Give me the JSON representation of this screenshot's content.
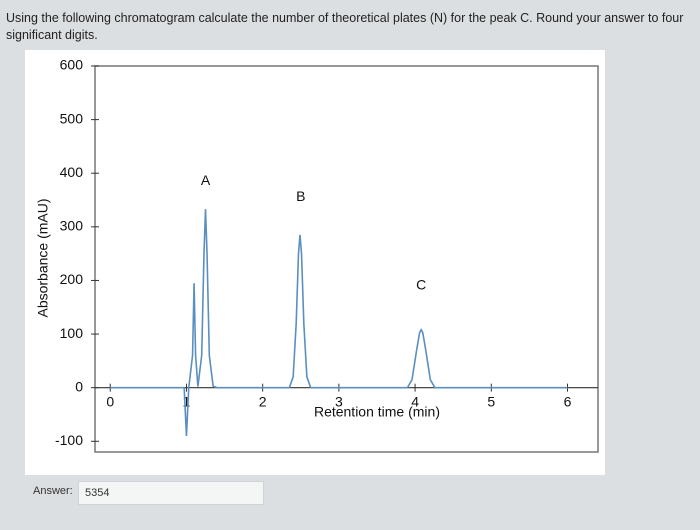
{
  "question": "Using the following chromatogram calculate the number of theoretical plates (N) for the peak C. Round your answer to four significant digits.",
  "answer_label": "Answer:",
  "answer_value": "5354",
  "chart_data": {
    "type": "line",
    "xlabel": "Retention time (min)",
    "ylabel": "Absorbance (mAU)",
    "xlim": [
      -0.2,
      6.4
    ],
    "ylim": [
      -120,
      600
    ],
    "xticks": [
      0,
      1,
      2,
      3,
      4,
      5,
      6
    ],
    "yticks": [
      -100,
      0,
      100,
      200,
      300,
      400,
      500,
      600
    ],
    "annotations": [
      {
        "text": "A",
        "x": 1.25,
        "y": 385
      },
      {
        "text": "B",
        "x": 2.5,
        "y": 355
      },
      {
        "text": "C",
        "x": 4.08,
        "y": 190
      }
    ],
    "series": [
      {
        "color": "#5b8fbf",
        "x": [
          0,
          0.97,
          1.0,
          1.03,
          1.08,
          1.1,
          1.12,
          1.15,
          1.2,
          1.23,
          1.25,
          1.27,
          1.3,
          1.35,
          1.4,
          2.35,
          2.4,
          2.44,
          2.47,
          2.49,
          2.51,
          2.54,
          2.58,
          2.63,
          3.9,
          3.96,
          4.02,
          4.06,
          4.08,
          4.1,
          4.14,
          4.2,
          4.26,
          6
        ],
        "values": [
          0,
          0,
          -90,
          0,
          60,
          195,
          60,
          2,
          60,
          250,
          333,
          250,
          60,
          3,
          0,
          0,
          20,
          120,
          250,
          285,
          250,
          120,
          20,
          0,
          0,
          15,
          70,
          103,
          108,
          103,
          70,
          15,
          0,
          0
        ]
      }
    ]
  }
}
